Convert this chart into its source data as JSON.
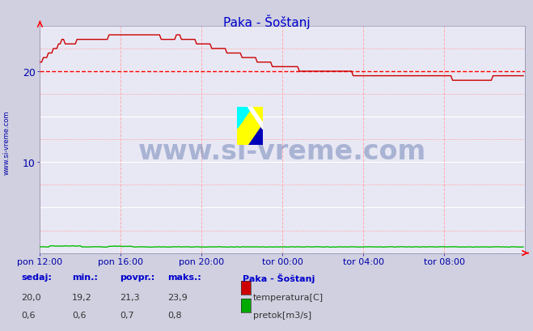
{
  "title": "Paka - Šoštanj",
  "title_color": "#0000cc",
  "bg_color": "#d0d0e0",
  "plot_bg_color": "#e8e8f4",
  "xlabel_color": "#0000aa",
  "ylabel_color": "#0000aa",
  "grid_color_major": "#ffffff",
  "grid_color_minor": "#ffaaaa",
  "xlim": [
    0,
    288
  ],
  "ylim": [
    0,
    25
  ],
  "yticks": [
    10,
    20
  ],
  "xtick_labels": [
    "pon 12:00",
    "pon 16:00",
    "pon 20:00",
    "tor 00:00",
    "tor 04:00",
    "tor 08:00"
  ],
  "xtick_positions": [
    0,
    48,
    96,
    144,
    192,
    240
  ],
  "avg_line_value": 20.0,
  "avg_line_color": "#ff0000",
  "temp_line_color": "#cc0000",
  "flow_line_color": "#00bb00",
  "watermark_text": "www.si-vreme.com",
  "watermark_color": "#1a3a8a",
  "watermark_alpha": 0.3,
  "left_label": "www.si-vreme.com",
  "left_label_color": "#0000aa",
  "legend_title": "Paka - Šoštanj",
  "legend_label1": "temperatura[C]",
  "legend_label2": "pretok[m3/s]",
  "legend_color1": "#cc0000",
  "legend_color2": "#00aa00",
  "stats_labels": [
    "sedaj:",
    "min.:",
    "povpr.:",
    "maks.:"
  ],
  "stats_temp": [
    "20,0",
    "19,2",
    "21,3",
    "23,9"
  ],
  "stats_flow": [
    "0,6",
    "0,6",
    "0,7",
    "0,8"
  ],
  "stats_color": "#0000cc"
}
